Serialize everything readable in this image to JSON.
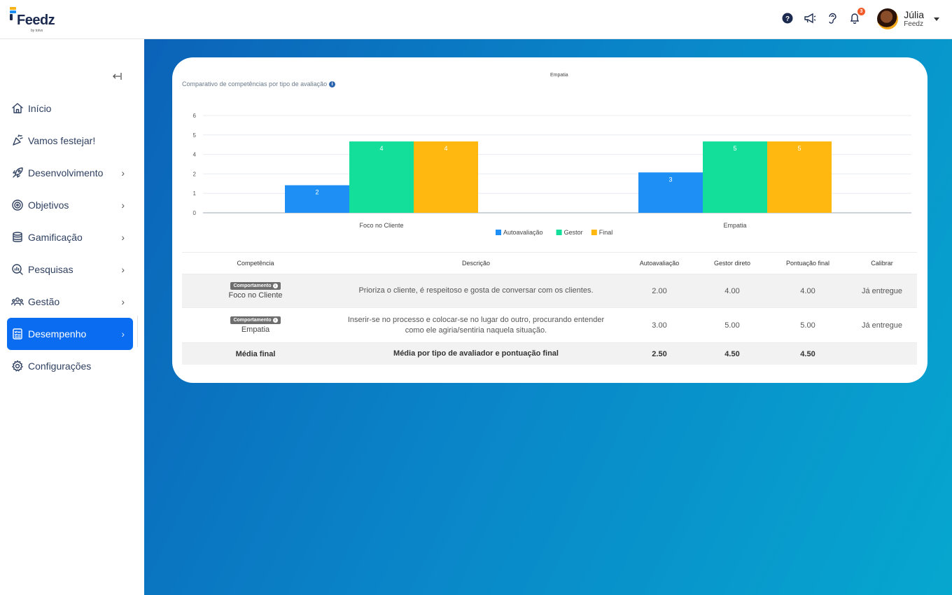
{
  "app": {
    "logo_text": "Feedz",
    "logo_sub": "by totvs"
  },
  "header": {
    "icons": [
      "help-icon",
      "megaphone-icon",
      "ear-icon",
      "bell-icon"
    ],
    "notification_count": "3",
    "user_name": "Júlia",
    "user_org": "Feedz"
  },
  "sidebar": {
    "items": [
      {
        "label": "Início",
        "icon": "home-icon",
        "has_chevron": false,
        "active": false
      },
      {
        "label": "Vamos festejar!",
        "icon": "party-icon",
        "has_chevron": false,
        "active": false
      },
      {
        "label": "Desenvolvimento",
        "icon": "rocket-icon",
        "has_chevron": true,
        "active": false
      },
      {
        "label": "Objetivos",
        "icon": "target-icon",
        "has_chevron": true,
        "active": false
      },
      {
        "label": "Gamificação",
        "icon": "coins-icon",
        "has_chevron": true,
        "active": false
      },
      {
        "label": "Pesquisas",
        "icon": "survey-icon",
        "has_chevron": true,
        "active": false
      },
      {
        "label": "Gestão",
        "icon": "team-icon",
        "has_chevron": true,
        "active": false
      },
      {
        "label": "Desempenho",
        "icon": "checklist-icon",
        "has_chevron": true,
        "active": true
      },
      {
        "label": "Configurações",
        "icon": "gear-icon",
        "has_chevron": false,
        "active": false
      }
    ]
  },
  "chart": {
    "title": "Empatia",
    "subtitle": "Comparativo de competências por tipo de avaliação"
  },
  "chart_data": {
    "type": "bar",
    "title": "Empatia",
    "categories": [
      "Foco no Cliente",
      "Empatia"
    ],
    "series": [
      {
        "name": "Autoavaliação",
        "color": "#1e90f5",
        "values": [
          2,
          3
        ],
        "labels": [
          "2",
          "3"
        ]
      },
      {
        "name": "Gestor",
        "color": "#13df9a",
        "values": [
          4,
          5
        ],
        "labels": [
          "4",
          "5"
        ]
      },
      {
        "name": "Final",
        "color": "#ffb80f",
        "values": [
          4,
          5
        ],
        "labels": [
          "4",
          "5"
        ]
      }
    ],
    "yticks": [
      "0",
      "1",
      "2",
      "4",
      "5",
      "6"
    ],
    "ylim": [
      0,
      6
    ],
    "grid": true,
    "legend": "bottom"
  },
  "table": {
    "headers": [
      "Competência",
      "Descrição",
      "Autoavaliação",
      "Gestor direto",
      "Pontuação final",
      "Calibrar"
    ],
    "rows": [
      {
        "tag": "Comportamento",
        "name": "Foco no Cliente",
        "description": "Prioriza o cliente, é respeitoso e gosta de conversar com os clientes.",
        "auto": "2.00",
        "gestor": "4.00",
        "final": "4.00",
        "calibrar": "Já entregue"
      },
      {
        "tag": "Comportamento",
        "name": "Empatia",
        "description": "Inserir-se no processo e colocar-se no lugar do outro, procurando entender como ele agiria/sentiria naquela situação.",
        "auto": "3.00",
        "gestor": "5.00",
        "final": "5.00",
        "calibrar": "Já entregue"
      }
    ],
    "footer": {
      "label": "Média final",
      "description": "Média por tipo de avaliador e pontuação final",
      "auto": "2.50",
      "gestor": "4.50",
      "final": "4.50"
    }
  }
}
